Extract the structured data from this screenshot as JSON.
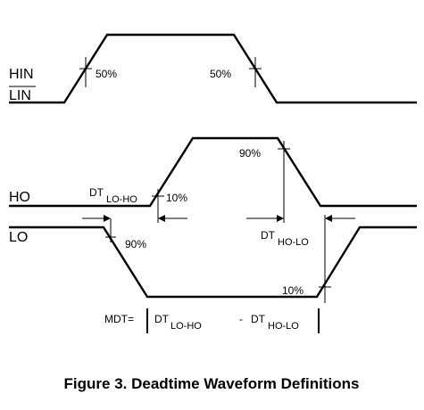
{
  "signals": {
    "hin": "HIN",
    "lin": "LIN",
    "ho": "HO",
    "lo": "LO"
  },
  "percent_labels": {
    "hin_rise": "50%",
    "hin_fall": "50%",
    "ho_fall_90": "90%",
    "ho_rise_10": "10%",
    "lo_fall_90": "90%",
    "lo_rise_10": "10%"
  },
  "deadtime_labels": {
    "lo_ho_main": "DT",
    "lo_ho_sub": "LO-HO",
    "ho_lo_main": "DT",
    "ho_lo_sub": "HO-LO"
  },
  "mdt_formula": {
    "lhs": "MDT=",
    "term1_main": "DT",
    "term1_sub": "LO-HO",
    "minus": "-",
    "term2_main": "DT",
    "term2_sub": "HO-LO"
  },
  "caption": "Figure 3.  Deadtime Waveform Definitions"
}
